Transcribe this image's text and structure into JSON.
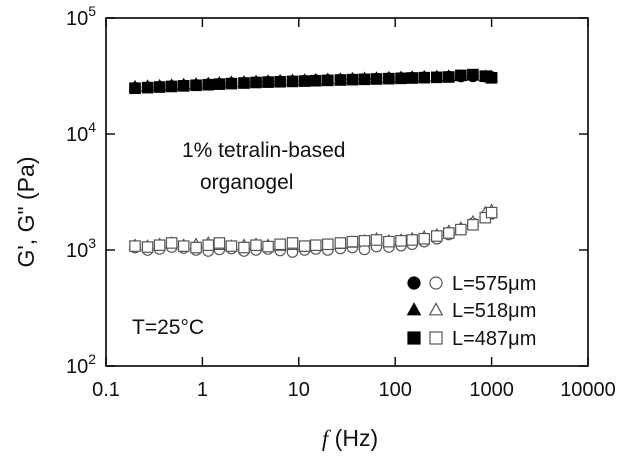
{
  "chart_data": {
    "type": "scatter",
    "xscale": "log",
    "yscale": "log",
    "xlim": [
      0.1,
      10000
    ],
    "ylim": [
      100,
      100000
    ],
    "xticks": [
      "0.1",
      "1",
      "10",
      "100",
      "1000",
      "10000"
    ],
    "yticks": [
      {
        "base": "10",
        "exp": "2"
      },
      {
        "base": "10",
        "exp": "3"
      },
      {
        "base": "10",
        "exp": "4"
      },
      {
        "base": "10",
        "exp": "5"
      }
    ],
    "xlabel": {
      "italic": "f",
      "unit": " (Hz)"
    },
    "ylabel": "G', G\" (Pa)",
    "annotations": {
      "sample_line1": "1% tetralin-based",
      "sample_line2": "organogel",
      "temperature": "T=25°C"
    },
    "legend_position": "bottom-right",
    "legend": [
      {
        "label": "L=575μm",
        "marker": "circle"
      },
      {
        "label": "L=518μm",
        "marker": "triangle"
      },
      {
        "label": "L=487μm",
        "marker": "square"
      }
    ],
    "series": [
      {
        "label": "L=575μm",
        "quantity": "G'",
        "marker": "circle",
        "filled": true,
        "x": [
          0.2,
          0.27,
          0.36,
          0.48,
          0.64,
          0.86,
          1.15,
          1.5,
          2,
          2.7,
          3.6,
          4.8,
          6.4,
          8.6,
          11.5,
          15,
          20,
          27,
          36,
          48,
          64,
          86,
          115,
          150,
          200,
          270,
          360,
          480,
          640,
          860,
          1000
        ],
        "y": [
          25000,
          25300,
          25600,
          25900,
          26200,
          26500,
          26800,
          27100,
          27400,
          27700,
          28000,
          28200,
          28400,
          28600,
          28800,
          29000,
          29200,
          29400,
          29600,
          29800,
          30000,
          30200,
          30400,
          30600,
          30800,
          31000,
          31200,
          31300,
          31400,
          31200,
          31000
        ]
      },
      {
        "label": "L=518μm",
        "quantity": "G'",
        "marker": "triangle",
        "filled": true,
        "x": [
          0.2,
          0.27,
          0.36,
          0.48,
          0.64,
          0.86,
          1.15,
          1.5,
          2,
          2.7,
          3.6,
          4.8,
          6.4,
          8.6,
          11.5,
          15,
          20,
          27,
          36,
          48,
          64,
          86,
          115,
          150,
          200,
          270,
          360,
          480,
          640,
          860,
          1000
        ],
        "y": [
          25500,
          25800,
          26000,
          26300,
          26600,
          26900,
          27200,
          27500,
          27800,
          28100,
          28300,
          28500,
          28700,
          28900,
          29100,
          29300,
          29500,
          29700,
          29900,
          30100,
          30300,
          30500,
          30700,
          30900,
          31100,
          31300,
          31500,
          31600,
          31700,
          31400,
          31200
        ]
      },
      {
        "label": "L=487μm",
        "quantity": "G'",
        "marker": "square",
        "filled": true,
        "x": [
          0.2,
          0.27,
          0.36,
          0.48,
          0.64,
          0.86,
          1.15,
          1.5,
          2,
          2.7,
          3.6,
          4.8,
          6.4,
          8.6,
          11.5,
          15,
          20,
          27,
          36,
          48,
          64,
          86,
          115,
          150,
          200,
          270,
          360,
          480,
          640,
          860,
          1000
        ],
        "y": [
          24800,
          25100,
          25400,
          25700,
          26000,
          26300,
          26600,
          26900,
          27200,
          27500,
          27800,
          28000,
          28200,
          28400,
          28600,
          28800,
          29000,
          29200,
          29400,
          29600,
          29800,
          30000,
          30200,
          30400,
          30600,
          30800,
          31000,
          32000,
          32500,
          31500,
          30500
        ]
      },
      {
        "label": "L=575μm",
        "quantity": "G\"",
        "marker": "circle",
        "filled": false,
        "x": [
          0.2,
          0.27,
          0.36,
          0.48,
          0.64,
          0.86,
          1.15,
          1.5,
          2,
          2.7,
          3.6,
          4.8,
          6.4,
          8.6,
          11.5,
          15,
          20,
          27,
          36,
          48,
          64,
          86,
          115,
          150,
          200,
          270,
          360,
          480,
          640,
          860,
          1000
        ],
        "y": [
          1050,
          1000,
          1020,
          1060,
          1040,
          1000,
          980,
          1010,
          1030,
          980,
          1000,
          1020,
          990,
          960,
          1000,
          1020,
          1000,
          1030,
          1050,
          1010,
          1070,
          1060,
          1090,
          1120,
          1180,
          1250,
          1360,
          1500,
          1700,
          1900,
          2050
        ]
      },
      {
        "label": "L=518μm",
        "quantity": "G\"",
        "marker": "triangle",
        "filled": false,
        "x": [
          0.2,
          0.27,
          0.36,
          0.48,
          0.64,
          0.86,
          1.15,
          1.5,
          2,
          2.7,
          3.6,
          4.8,
          6.4,
          8.6,
          11.5,
          15,
          20,
          27,
          36,
          48,
          64,
          86,
          115,
          150,
          200,
          270,
          360,
          480,
          640,
          860,
          1000
        ],
        "y": [
          1100,
          1080,
          1120,
          1150,
          1100,
          1120,
          1150,
          1100,
          1080,
          1100,
          1120,
          1100,
          1080,
          1100,
          1060,
          1080,
          1100,
          1120,
          1150,
          1200,
          1250,
          1200,
          1220,
          1250,
          1300,
          1350,
          1450,
          1550,
          1750,
          2100,
          2200
        ]
      },
      {
        "label": "L=487μm",
        "quantity": "G\"",
        "marker": "square",
        "filled": false,
        "x": [
          0.2,
          0.27,
          0.36,
          0.48,
          0.64,
          0.86,
          1.15,
          1.5,
          2,
          2.7,
          3.6,
          4.8,
          6.4,
          8.6,
          11.5,
          15,
          20,
          27,
          36,
          48,
          64,
          86,
          115,
          150,
          200,
          270,
          360,
          480,
          640,
          860,
          1000
        ],
        "y": [
          1080,
          1060,
          1100,
          1150,
          1080,
          1050,
          1100,
          1150,
          1080,
          1050,
          1100,
          1070,
          1120,
          1150,
          1080,
          1100,
          1120,
          1150,
          1180,
          1200,
          1220,
          1180,
          1200,
          1220,
          1250,
          1320,
          1400,
          1500,
          1650,
          1900,
          2100
        ]
      }
    ]
  }
}
